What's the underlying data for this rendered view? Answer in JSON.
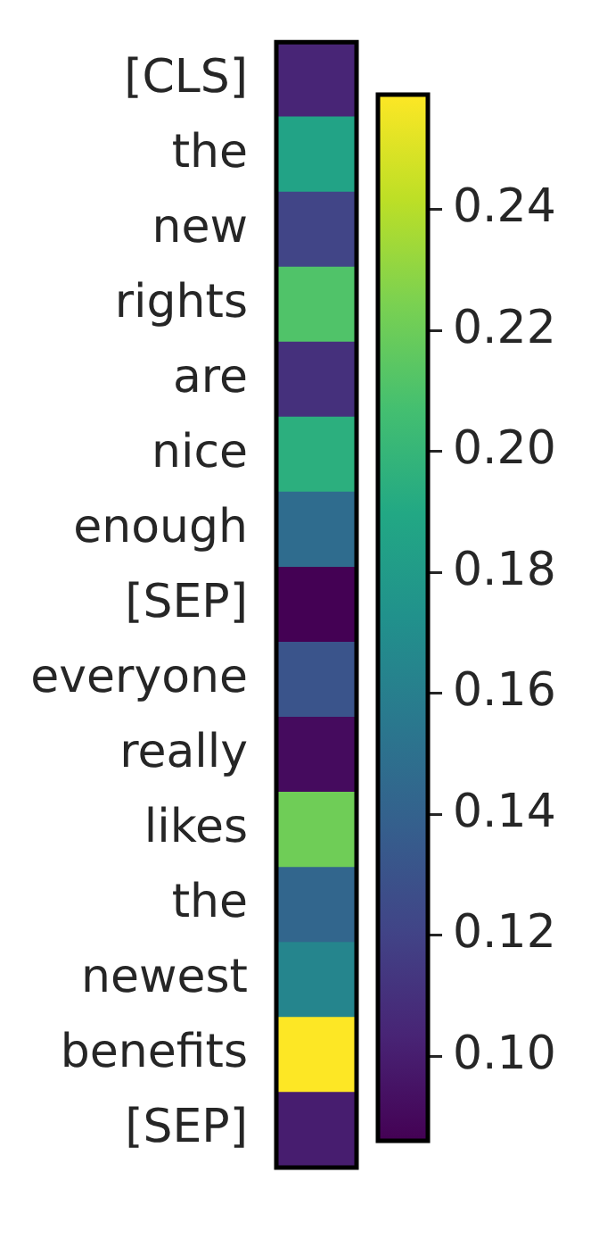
{
  "chart_data": {
    "type": "heatmap",
    "categories": [
      null
    ],
    "y_categories": [
      "[CLS]",
      "the",
      "new",
      "rights",
      "are",
      "nice",
      "enough",
      "[SEP]",
      "everyone",
      "really",
      "likes",
      "the",
      "newest",
      "benefits",
      "[SEP]"
    ],
    "cells": [
      [
        0.104
      ],
      [
        0.186
      ],
      [
        0.121
      ],
      [
        0.211
      ],
      [
        0.11
      ],
      [
        0.195
      ],
      [
        0.147
      ],
      [
        0.086
      ],
      [
        0.131
      ],
      [
        0.091
      ],
      [
        0.221
      ],
      [
        0.143
      ],
      [
        0.164
      ],
      [
        0.259
      ],
      [
        0.1
      ]
    ],
    "clim": [
      0.086,
      0.259
    ],
    "cticks": [
      {
        "value": 0.1,
        "label": "0.10"
      },
      0.12,
      0.14,
      0.16,
      0.18,
      {
        "value": 0.2,
        "label": "0.20"
      },
      0.22,
      0.24
    ],
    "tick_labels": "y"
  }
}
